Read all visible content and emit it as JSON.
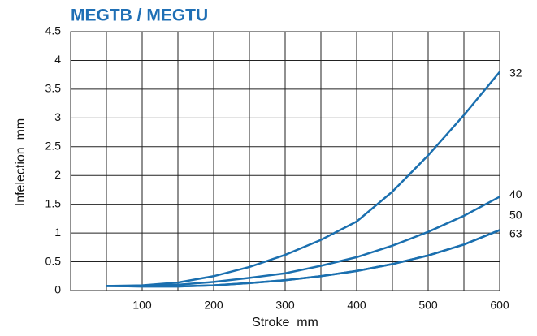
{
  "chart_data": {
    "type": "line",
    "title": "MEGTB / MEGTU",
    "x_label": "Stroke  mm",
    "y_label": "Infelection  mm",
    "x": [
      50,
      100,
      150,
      200,
      250,
      300,
      350,
      400,
      450,
      500,
      550,
      600
    ],
    "series": [
      {
        "name": "32",
        "color": "#1a6faf",
        "values": [
          0.08,
          0.09,
          0.14,
          0.25,
          0.41,
          0.62,
          0.88,
          1.2,
          1.72,
          2.35,
          3.05,
          3.8
        ]
      },
      {
        "name": "40",
        "color": "#1a6faf",
        "values": [
          0.08,
          0.08,
          0.1,
          0.15,
          0.22,
          0.3,
          0.43,
          0.58,
          0.78,
          1.02,
          1.3,
          1.63
        ]
      },
      {
        "name": "50",
        "color": "#1a6faf",
        "values": [
          0.08,
          0.07,
          0.07,
          0.09,
          0.13,
          0.18,
          0.25,
          0.34,
          0.46,
          0.61,
          0.8,
          1.05
        ]
      },
      {
        "name": "63",
        "color": "#1a6faf",
        "values": [
          0.08,
          0.07,
          0.07,
          0.09,
          0.13,
          0.18,
          0.25,
          0.34,
          0.46,
          0.61,
          0.8,
          1.05
        ]
      }
    ],
    "xlim": [
      0,
      600
    ],
    "xticks": [
      100,
      200,
      300,
      400,
      500,
      600
    ],
    "x_minor_grid": [
      50,
      150,
      250,
      350,
      450,
      550
    ],
    "ylim": [
      0,
      4.5
    ],
    "yticks": [
      0,
      0.5,
      1,
      1.5,
      2,
      2.5,
      3,
      3.5,
      4,
      4.5
    ],
    "grid": true,
    "title_color": "#1f6fb5"
  }
}
